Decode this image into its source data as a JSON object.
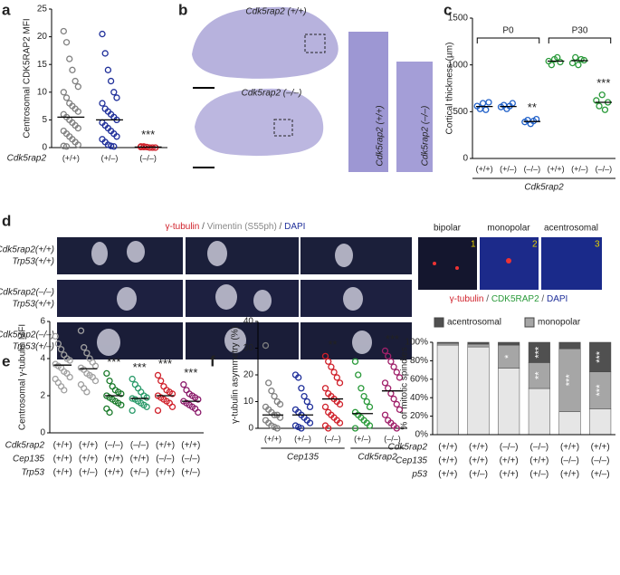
{
  "figure": {
    "panels": [
      "a",
      "b",
      "c",
      "d",
      "e",
      "f"
    ],
    "b": {
      "section_labels": [
        "Cdk5rap2 (+/+)",
        "Cdk5rap2 (–/–)"
      ],
      "strip_labels": [
        "Cdk5rap2 (+/+)",
        "Cdk5rap2 (–/–)"
      ]
    },
    "d": {
      "stain_title": [
        {
          "text": "γ-tubulin",
          "color": "#d0202a"
        },
        {
          "text": " / ",
          "color": "#555555"
        },
        {
          "text": "Vimentin (S55ph)",
          "color": "#888888"
        },
        {
          "text": " / ",
          "color": "#555555"
        },
        {
          "text": "DAPI",
          "color": "#1f2f9a"
        }
      ],
      "row_labels": [
        [
          "Cdk5rap2(+/+)",
          "Trp53(+/+)"
        ],
        [
          "Cdk5rap2(–/–)",
          "Trp53(+/+)"
        ],
        [
          "Cdk5rap2(–/–)",
          "Trp53(+/–)"
        ]
      ],
      "inset_titles": [
        "bipolar",
        "monopolar",
        "acentrosomal"
      ],
      "inset_numbers": [
        "1",
        "2",
        "3"
      ],
      "inset_stain": [
        {
          "text": "γ-tubulin",
          "color": "#d0202a"
        },
        {
          "text": " / ",
          "color": "#555555"
        },
        {
          "text": "CDK5RAP2",
          "color": "#2a9a3a"
        },
        {
          "text": " / ",
          "color": "#555555"
        },
        {
          "text": "DAPI",
          "color": "#1f2f9a"
        }
      ]
    }
  },
  "chart_data": [
    {
      "type": "dotplot",
      "ylabel": "Centrosomal CDK5RAP2 MFI",
      "xlabel": "Cdk5rap2",
      "categories": [
        "(+/+)",
        "(+/–)",
        "(–/–)"
      ],
      "ylim": [
        0,
        25
      ],
      "yticks": [
        0,
        5,
        10,
        15,
        20,
        25
      ],
      "groups": [
        {
          "color": "#808080",
          "mean": 5.5,
          "values": [
            21,
            19,
            16,
            14,
            12,
            11,
            10,
            9,
            8,
            7.5,
            7,
            6.5,
            6,
            5.5,
            5,
            4.5,
            4,
            3.5,
            3,
            2.5,
            2,
            1.5,
            1,
            0.5,
            0.3,
            0.2
          ]
        },
        {
          "color": "#1f2f9a",
          "mean": 5,
          "values": [
            20.5,
            17,
            14,
            12,
            10,
            9,
            8,
            7,
            6.5,
            6,
            5.5,
            5,
            4.5,
            4,
            3.5,
            3,
            2.5,
            2,
            1.5,
            1,
            0.5,
            0.3,
            0.2
          ]
        },
        {
          "color": "#d0202a",
          "mean": 0.1,
          "significance": "***",
          "values": [
            0.2,
            0.1,
            0.1,
            0,
            0,
            0,
            0.1,
            0.2
          ]
        }
      ]
    },
    {
      "type": "dotplot",
      "ylabel": "Cortical thickness (µm)",
      "xlabel": "Cdk5rap2",
      "categories": [
        "(+/+)",
        "(+/–)",
        "(–/–)",
        "(+/+)",
        "(+/–)",
        "(–/–)"
      ],
      "ylim": [
        0,
        1500
      ],
      "yticks": [
        0,
        500,
        1000,
        1500
      ],
      "brackets": [
        {
          "label": "P0",
          "from": 0,
          "to": 2
        },
        {
          "label": "P30",
          "from": 3,
          "to": 5
        }
      ],
      "groups": [
        {
          "color": "#2060c8",
          "mean": 555,
          "values": [
            560,
            530,
            590,
            520,
            600
          ]
        },
        {
          "color": "#2060c8",
          "mean": 555,
          "values": [
            550,
            570,
            530,
            560,
            590
          ]
        },
        {
          "color": "#2060c8",
          "mean": 395,
          "significance": "**",
          "values": [
            390,
            410,
            370,
            400,
            420
          ]
        },
        {
          "color": "#2a9a3a",
          "mean": 1040,
          "values": [
            1040,
            1000,
            1060,
            1080,
            1030
          ]
        },
        {
          "color": "#2a9a3a",
          "mean": 1045,
          "values": [
            1020,
            1080,
            1000,
            1060,
            1050
          ]
        },
        {
          "color": "#2a9a3a",
          "mean": 600,
          "significance": "***",
          "values": [
            620,
            560,
            680,
            520,
            600
          ]
        }
      ]
    },
    {
      "type": "dotplot",
      "ylabel": "Centrosomal γ-tubulin MFI",
      "ylim": [
        0,
        6
      ],
      "yticks": [
        0,
        2,
        4,
        6
      ],
      "rows": [
        {
          "name": "Cdk5rap2",
          "values": [
            "(+/+)",
            "(+/+)",
            "(–/–)",
            "(–/–)",
            "(+/+)",
            "(+/+)"
          ]
        },
        {
          "name": "Cep135",
          "values": [
            "(+/+)",
            "(+/+)",
            "(+/+)",
            "(+/+)",
            "(–/–)",
            "(–/–)"
          ]
        },
        {
          "name": "Trp53",
          "values": [
            "(+/+)",
            "(+/–)",
            "(+/+)",
            "(+/–)",
            "(+/+)",
            "(+/–)"
          ]
        }
      ],
      "groups": [
        {
          "color": "#a0a0a0",
          "mean": 3.65,
          "values": [
            5.2,
            4.8,
            4.5,
            4.2,
            4,
            3.9,
            3.7,
            3.6,
            3.5,
            3.3,
            3.2,
            3,
            2.9,
            2.7,
            2.5,
            2.3
          ]
        },
        {
          "color": "#a0a0a0",
          "mean": 3.45,
          "values": [
            5.5,
            4.6,
            4.3,
            4,
            3.8,
            3.6,
            3.5,
            3.4,
            3.2,
            3.1,
            3,
            2.8,
            2.6,
            2.4,
            2.2
          ]
        },
        {
          "color": "#1a7a2a",
          "mean": 2,
          "significance": "***",
          "values": [
            3.2,
            2.8,
            2.5,
            2.3,
            2.2,
            2.1,
            2,
            1.9,
            1.8,
            1.7,
            1.6,
            1.5,
            1.3,
            1.1
          ]
        },
        {
          "color": "#2a9a6a",
          "mean": 1.85,
          "significance": "***",
          "values": [
            2.9,
            2.6,
            2.4,
            2.2,
            2,
            1.9,
            1.85,
            1.8,
            1.7,
            1.6,
            1.5,
            1.4,
            1.2
          ]
        },
        {
          "color": "#d0202a",
          "mean": 2,
          "significance": "***",
          "values": [
            3.1,
            2.8,
            2.5,
            2.3,
            2.2,
            2.1,
            2,
            1.9,
            1.8,
            1.7,
            1.6,
            1.4,
            1.2
          ]
        },
        {
          "color": "#8a1a6a",
          "mean": 1.7,
          "significance": "***",
          "values": [
            2.6,
            2.3,
            2.1,
            2,
            1.9,
            1.8,
            1.7,
            1.6,
            1.5,
            1.4,
            1.3,
            1.1
          ]
        }
      ]
    },
    {
      "type": "dotplot",
      "ylabel": "γ-tubulin asymmetry (%)",
      "ylim": [
        0,
        40
      ],
      "yticks": [
        0,
        10,
        20,
        30,
        40
      ],
      "categories": [
        "(+/+)",
        "(+/–)",
        "(–/–)",
        "(+/–)",
        "(–/–)"
      ],
      "sections": [
        {
          "label": "Cep135",
          "from": 0,
          "to": 2
        },
        {
          "label": "Cdk5rap2",
          "from": 3,
          "to": 4
        }
      ],
      "groups": [
        {
          "color": "#808080",
          "mean": 5,
          "values": [
            31,
            17,
            14,
            12,
            10,
            9,
            8,
            7,
            6,
            5,
            5,
            4,
            3,
            2,
            1,
            0.5,
            0
          ]
        },
        {
          "color": "#1f2f9a",
          "mean": 5,
          "values": [
            20,
            19,
            15,
            12,
            10,
            8,
            7,
            6,
            5,
            4,
            3,
            2,
            1,
            0.5,
            0
          ]
        },
        {
          "color": "#d0202a",
          "mean": 11,
          "significance": "**",
          "values": [
            27,
            25,
            23,
            21,
            19,
            17,
            15,
            13,
            12,
            11,
            10,
            9,
            8,
            6,
            5,
            4,
            3,
            2,
            1,
            0
          ]
        },
        {
          "color": "#2a9a3a",
          "mean": 5.5,
          "values": [
            25,
            20,
            15,
            12,
            10,
            8,
            6,
            5,
            4,
            3,
            2,
            1,
            0
          ]
        },
        {
          "color": "#a0206a",
          "mean": 14,
          "significance": "***",
          "values": [
            29,
            27,
            25,
            23,
            21,
            19,
            17,
            15,
            13,
            11,
            9,
            7,
            5,
            3,
            2,
            1,
            0
          ]
        }
      ]
    },
    {
      "type": "stacked",
      "ylabel": "% of mitotic spindles",
      "ylim": [
        0,
        100
      ],
      "yticks": [
        {
          "value": 0,
          "label": "0%"
        },
        {
          "value": 20,
          "label": "20%"
        },
        {
          "value": 40,
          "label": "40%"
        },
        {
          "value": 60,
          "label": "60%"
        },
        {
          "value": 80,
          "label": "80%"
        },
        {
          "value": 100,
          "label": "100%"
        }
      ],
      "rows": [
        {
          "name": "Cdk5rap2",
          "values": [
            "(+/+)",
            "(+/+)",
            "(–/–)",
            "(–/–)",
            "(+/+)",
            "(+/+)"
          ]
        },
        {
          "name": "Cep135",
          "values": [
            "(+/+)",
            "(+/+)",
            "(+/+)",
            "(+/+)",
            "(–/–)",
            "(–/–)"
          ]
        },
        {
          "name": "p53",
          "values": [
            "(+/+)",
            "(+/–)",
            "(+/+)",
            "(+/–)",
            "(+/+)",
            "(+/–)"
          ]
        }
      ],
      "series": [
        {
          "color": "#e6e6e6",
          "values": [
            97,
            95,
            72,
            50,
            25,
            28
          ]
        },
        {
          "name": "monopolar",
          "color": "#a6a6a6",
          "values": [
            2,
            3,
            25,
            28,
            68,
            40
          ],
          "significance": [
            null,
            null,
            "*",
            "**",
            "***",
            "***"
          ]
        },
        {
          "name": "acentrosomal",
          "color": "#505050",
          "values": [
            1,
            2,
            3,
            22,
            7,
            32
          ],
          "significance": [
            null,
            null,
            null,
            "***",
            null,
            "***"
          ]
        }
      ]
    }
  ]
}
